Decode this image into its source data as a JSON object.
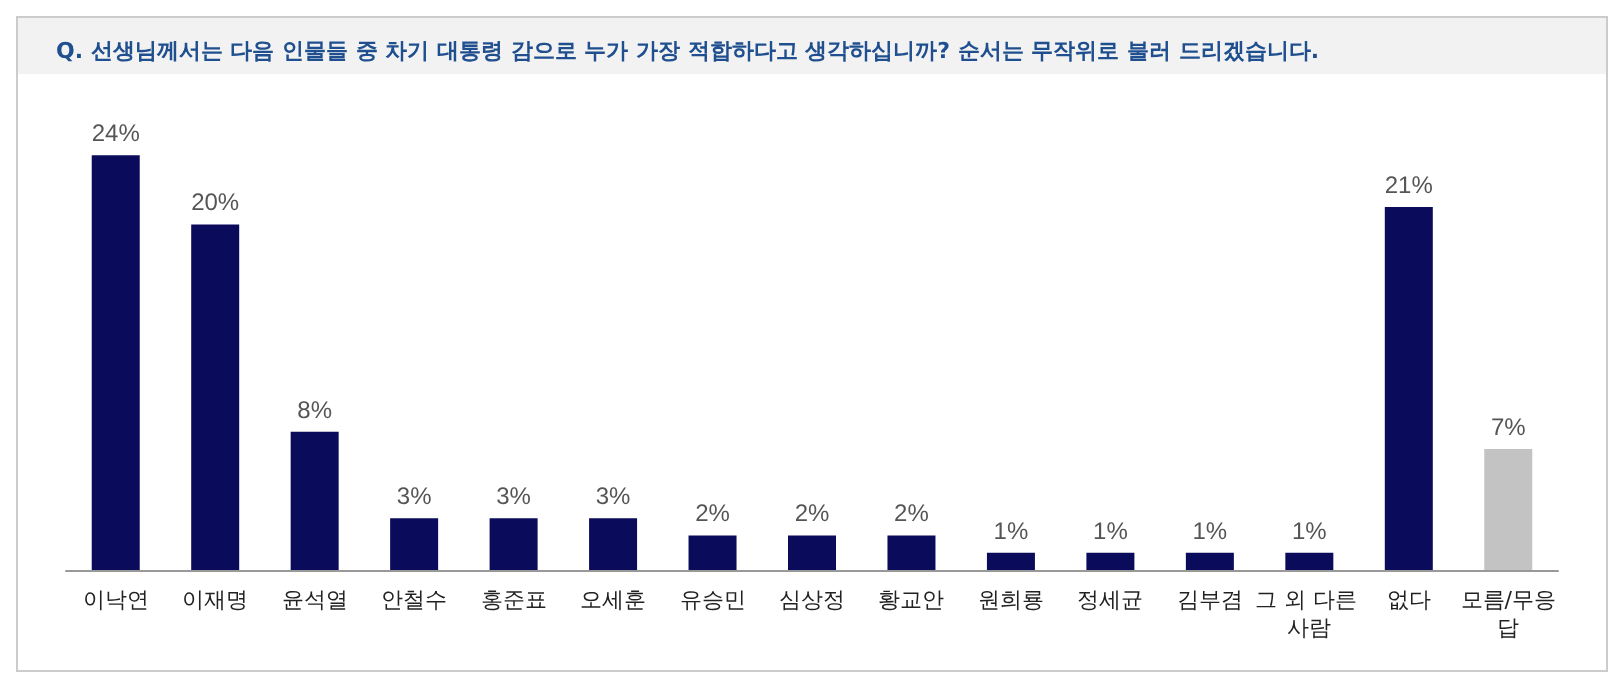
{
  "chart_data": {
    "type": "bar",
    "title": "Q. 선생님께서는 다음 인물들 중 차기 대통령 감으로 누가 가장 적합하다고 생각하십니까? 순서는 무작위로 불러 드리겠습니다.",
    "categories": [
      "이낙연",
      "이재명",
      "윤석열",
      "안철수",
      "홍준표",
      "오세훈",
      "유승민",
      "심상정",
      "황교안",
      "원희룡",
      "정세균",
      "김부겸",
      "그 외 다른 사람",
      "없다",
      "모름/무응답"
    ],
    "values": [
      24,
      20,
      8,
      3,
      3,
      3,
      2,
      2,
      2,
      1,
      1,
      1,
      1,
      21,
      7
    ],
    "value_labels": [
      "24%",
      "20%",
      "8%",
      "3%",
      "3%",
      "3%",
      "2%",
      "2%",
      "2%",
      "1%",
      "1%",
      "1%",
      "1%",
      "21%",
      "7%"
    ],
    "colors": [
      "#0b0b5c",
      "#0b0b5c",
      "#0b0b5c",
      "#0b0b5c",
      "#0b0b5c",
      "#0b0b5c",
      "#0b0b5c",
      "#0b0b5c",
      "#0b0b5c",
      "#0b0b5c",
      "#0b0b5c",
      "#0b0b5c",
      "#0b0b5c",
      "#0b0b5c",
      "#c3c3c3"
    ]
  }
}
